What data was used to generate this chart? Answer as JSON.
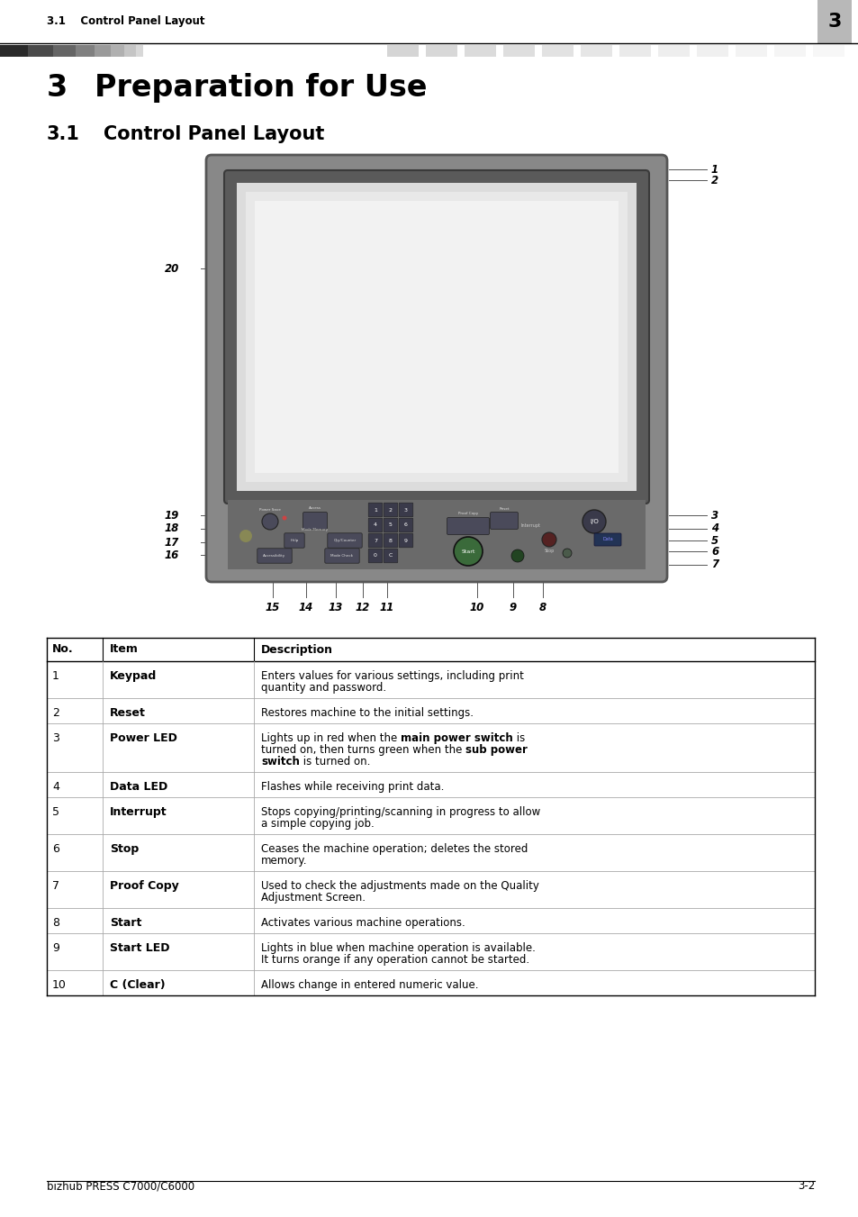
{
  "page_bg": "#ffffff",
  "header_text_left": "3.1    Control Panel Layout",
  "header_num": "3",
  "header_num_bg": "#b8b8b8",
  "chapter_num": "3",
  "chapter_title": "Preparation for Use",
  "section_num": "3.1",
  "section_title": "Control Panel Layout",
  "footer_left": "bizhub PRESS C7000/C6000",
  "footer_right": "3-2",
  "table_headers": [
    "No.",
    "Item",
    "Description"
  ],
  "table_rows": [
    [
      "1",
      "Keypad",
      [
        [
          "Enters values for various settings, including print",
          false
        ],
        [
          "quantity and password.",
          false
        ]
      ]
    ],
    [
      "2",
      "Reset",
      [
        [
          "Restores machine to the initial settings.",
          false
        ]
      ]
    ],
    [
      "3",
      "Power LED",
      [
        [
          "Lights up in red when the ",
          false
        ],
        [
          "main power switch",
          true
        ],
        [
          " is",
          false
        ],
        [
          "turned on, then turns green when the ",
          false
        ],
        [
          "sub power",
          true
        ],
        [
          "switch",
          true
        ],
        [
          " is turned on.",
          false
        ]
      ]
    ],
    [
      "4",
      "Data LED",
      [
        [
          "Flashes while receiving print data.",
          false
        ]
      ]
    ],
    [
      "5",
      "Interrupt",
      [
        [
          "Stops copying/printing/scanning in progress to allow",
          false
        ],
        [
          "a simple copying job.",
          false
        ]
      ]
    ],
    [
      "6",
      "Stop",
      [
        [
          "Ceases the machine operation; deletes the stored",
          false
        ],
        [
          "memory.",
          false
        ]
      ]
    ],
    [
      "7",
      "Proof Copy",
      [
        [
          "Used to check the adjustments made on the Quality",
          false
        ],
        [
          "Adjustment Screen.",
          false
        ]
      ]
    ],
    [
      "8",
      "Start",
      [
        [
          "Activates various machine operations.",
          false
        ]
      ]
    ],
    [
      "9",
      "Start LED",
      [
        [
          "Lights in blue when machine operation is available.",
          false
        ],
        [
          "It turns orange if any operation cannot be started.",
          false
        ]
      ]
    ],
    [
      "10",
      "C (Clear)",
      [
        [
          "Allows change in entered numeric value.",
          false
        ]
      ]
    ]
  ],
  "panel_color": "#7a7a7a",
  "panel_border": "#555555",
  "screen_bg": "#e8e8e8",
  "screen_frame": "#5a5a5a",
  "screen_inner": "#f0f0f0",
  "button_dark": "#4a4a56",
  "button_border": "#333333"
}
